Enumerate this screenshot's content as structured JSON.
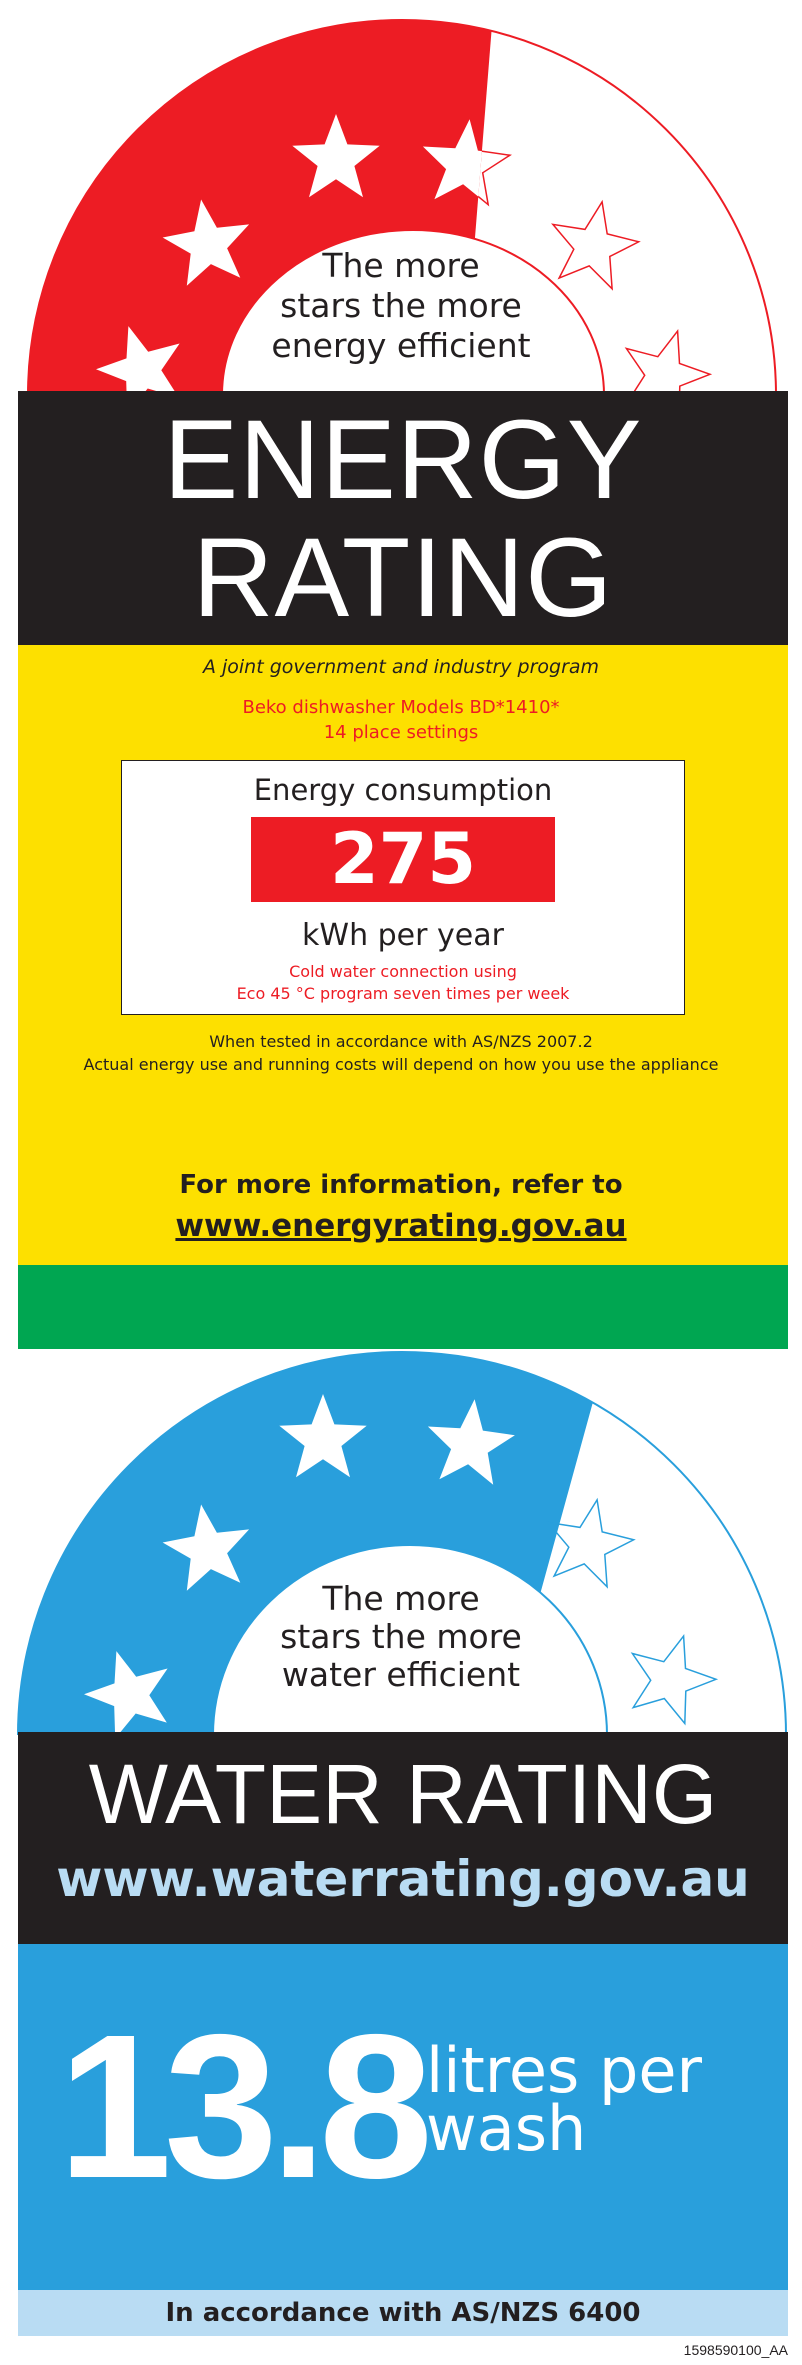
{
  "energy": {
    "tagline": [
      "The more",
      "stars the more",
      "energy efficient"
    ],
    "title_line1": "ENERGY",
    "title_line2": "RATING",
    "program": "A joint government and industry program",
    "model": "Beko dishwasher Models BD*1410*",
    "capacity": "14 place settings",
    "consumption_label": "Energy consumption",
    "consumption_value": "275",
    "consumption_unit": "kWh per year",
    "conditions": [
      "Cold water connection using",
      "Eco 45 °C program seven times per week"
    ],
    "test_note": "When tested in accordance with AS/NZS 2007.2",
    "usage_note": "Actual energy use and running costs will depend on how you use the appliance",
    "more_info": "For more information, refer to",
    "url": "www.energyrating.gov.au",
    "star_rating": 3.5,
    "star_total": 6,
    "colors": {
      "accent": "#ed1c24",
      "panel": "#fde000",
      "strip": "#00a651",
      "band": "#231f20"
    }
  },
  "water": {
    "tagline": [
      "The more",
      "stars the more",
      "water efficient"
    ],
    "title": "WATER RATING",
    "url": "www.waterrating.gov.au",
    "value": "13.8",
    "unit_line1": "litres per",
    "unit_line2": "wash",
    "standard": "In accordance with AS/NZS 6400",
    "star_rating": 4,
    "star_total": 6,
    "colors": {
      "accent": "#299fdc",
      "light": "#b9dcf3",
      "url": "#b9dcf3",
      "band": "#231f20"
    }
  },
  "footer_code": "1598590100_AA"
}
